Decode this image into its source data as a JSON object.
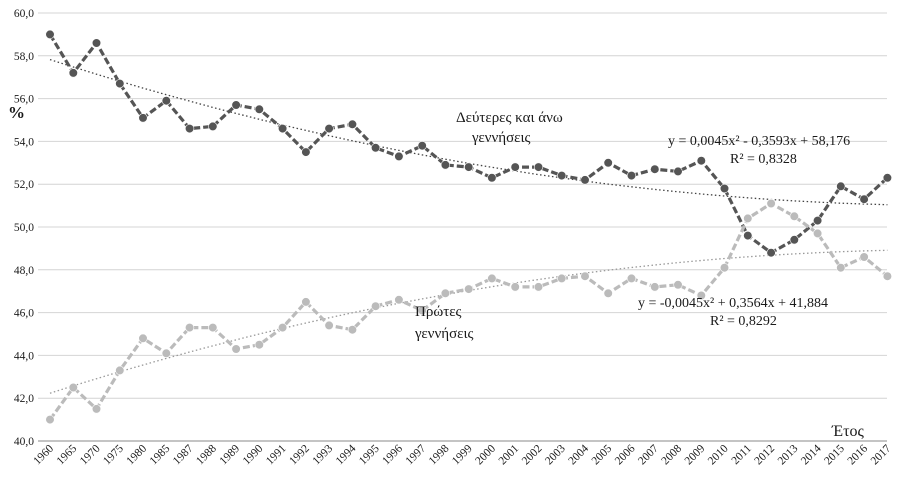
{
  "chart_data": {
    "type": "line",
    "ylabel": "%",
    "xlabel": "Έτος",
    "ylim": [
      40.0,
      60.0
    ],
    "y_ticks": [
      "40,0",
      "42,0",
      "44,0",
      "46,0",
      "48,0",
      "50,0",
      "52,0",
      "54,0",
      "56,0",
      "58,0",
      "60,0"
    ],
    "grid": "horizontal",
    "categories": [
      "1960",
      "1965",
      "1970",
      "1975",
      "1980",
      "1985",
      "1987",
      "1988",
      "1989",
      "1990",
      "1991",
      "1992",
      "1993",
      "1994",
      "1995",
      "1996",
      "1997",
      "1998",
      "1999",
      "2000",
      "2001",
      "2002",
      "2003",
      "2004",
      "2005",
      "2006",
      "2007",
      "2008",
      "2009",
      "2010",
      "2011",
      "2012",
      "2013",
      "2014",
      "2015",
      "2016",
      "2017"
    ],
    "series": [
      {
        "name": "Δεύτερες και άνω γεννήσεις",
        "color": "#555555",
        "values": [
          59.0,
          57.2,
          58.6,
          56.7,
          55.1,
          55.9,
          54.6,
          54.7,
          55.7,
          55.5,
          54.6,
          53.5,
          54.6,
          54.8,
          53.7,
          53.3,
          53.8,
          52.9,
          52.8,
          52.3,
          52.8,
          52.8,
          52.4,
          52.2,
          53.0,
          52.4,
          52.7,
          52.6,
          53.1,
          51.8,
          49.6,
          48.8,
          49.4,
          50.3,
          51.9,
          51.3,
          52.3
        ]
      },
      {
        "name": "Πρώτες γεννήσεις",
        "color": "#bbbbbb",
        "values": [
          41.0,
          42.5,
          41.5,
          43.3,
          44.8,
          44.1,
          45.3,
          45.3,
          44.3,
          44.5,
          45.3,
          46.5,
          45.4,
          45.2,
          46.3,
          46.6,
          46.1,
          46.9,
          47.1,
          47.6,
          47.2,
          47.2,
          47.6,
          47.7,
          46.9,
          47.6,
          47.2,
          47.3,
          46.8,
          48.1,
          50.4,
          51.1,
          50.5,
          49.7,
          48.1,
          48.6,
          47.7
        ]
      }
    ],
    "trendlines": [
      {
        "series": "Δεύτερες και άνω γεννήσεις",
        "a": 0.0045,
        "b": -0.3593,
        "c": 58.176,
        "equation": "y = 0,0045x² - 0,3593x + 58,176",
        "r2": "R² = 0,8328",
        "color": "#444444"
      },
      {
        "series": "Πρώτες γεννήσεις",
        "a": -0.0045,
        "b": 0.3564,
        "c": 41.884,
        "equation": "y = -0,0045x² + 0,3564x + 41,884",
        "r2": "R² = 0,8292",
        "color": "#999999"
      }
    ],
    "annotations": {
      "second_line1": "Δεύτερες και άνω",
      "second_line2": "γεννήσεις",
      "first_line1": "Πρώτες",
      "first_line2": "γεννήσεις"
    }
  }
}
